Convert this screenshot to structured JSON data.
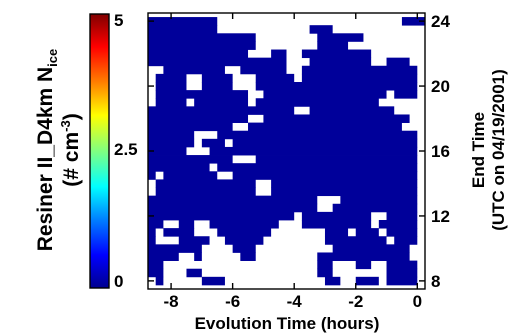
{
  "chart_data": {
    "type": "heatmap",
    "xlabel": "Evolution Time (hours)",
    "ylabel_right": [
      "End Time",
      "(UTC on 04/19/2001)"
    ],
    "colorbar_label": [
      "Resiner II_D4km N",
      "ice",
      "(# cm",
      "-3",
      ")"
    ],
    "xlim": [
      -8.75,
      0.25
    ],
    "ylim": [
      7.5,
      24.5
    ],
    "x_ticks": [
      -8,
      -6,
      -4,
      -2,
      0
    ],
    "y_ticks": [
      8,
      12,
      16,
      20,
      24
    ],
    "colorbar_ticks": [
      "0",
      "2.5",
      "5"
    ],
    "colorbar_range": [
      0,
      5
    ],
    "x_step": 0.25,
    "y_step": 0.5,
    "fill_color": "#00009a",
    "colormap": [
      "#00008f",
      "#0000ff",
      "#0080ff",
      "#00ffff",
      "#80ff80",
      "#ffff00",
      "#ff8000",
      "#ff0000",
      "#800000"
    ],
    "value_note": "all filled cells near 0",
    "rows": [
      {
        "y": 8.0,
        "x": [
          [
            -8.5,
            -8.25
          ],
          [
            -7.0,
            -6.25
          ],
          [
            -3.0,
            -2.5
          ],
          [
            -2.0,
            -1.25
          ],
          [
            -1.0,
            0
          ]
        ]
      },
      {
        "y": 8.5,
        "x": [
          [
            -8.75,
            -8.25
          ],
          [
            -7.5,
            -7.0
          ],
          [
            -3.25,
            -2.75
          ],
          [
            -1.0,
            0
          ]
        ]
      },
      {
        "y": 9.0,
        "x": [
          [
            -8.75,
            -8.25
          ],
          [
            -3.25,
            -2.75
          ],
          [
            -2.0,
            -1.5
          ],
          [
            -1.0,
            0
          ]
        ]
      },
      {
        "y": 9.5,
        "x": [
          [
            -8.75,
            -7.75
          ],
          [
            -7.25,
            -7.0
          ],
          [
            -5.75,
            -5.25
          ],
          [
            -3.25,
            -0.25
          ]
        ]
      },
      {
        "y": 10.0,
        "x": [
          [
            -8.75,
            -7.0
          ],
          [
            -6.0,
            -5.25
          ],
          [
            -2.75,
            -0.25
          ]
        ]
      },
      {
        "y": 10.5,
        "x": [
          [
            -8.75,
            -8.5
          ],
          [
            -7.75,
            -6.75
          ],
          [
            -6.25,
            -5.0
          ],
          [
            -3.0,
            -1.0
          ],
          [
            -0.75,
            0
          ]
        ]
      },
      {
        "y": 11.0,
        "x": [
          [
            -8.75,
            -8.5
          ],
          [
            -8.25,
            -7.25
          ],
          [
            -6.5,
            -4.75
          ],
          [
            -3.0,
            -2.25
          ],
          [
            -2.0,
            -1.25
          ],
          [
            -1.0,
            0
          ]
        ]
      },
      {
        "y": 11.5,
        "x": [
          [
            -8.75,
            -8.25
          ],
          [
            -7.75,
            -7.25
          ],
          [
            -6.75,
            -4.5
          ],
          [
            -3.75,
            -1.5
          ],
          [
            -1.25,
            0
          ]
        ]
      },
      {
        "y": 12.0,
        "x": [
          [
            -8.75,
            -4.0
          ],
          [
            -3.75,
            -1.5
          ],
          [
            -1.0,
            0
          ]
        ]
      },
      {
        "y": 12.5,
        "x": [
          [
            -8.75,
            -3.25
          ],
          [
            -2.75,
            0
          ]
        ]
      },
      {
        "y": 13.0,
        "x": [
          [
            -8.75,
            -3.25
          ],
          [
            -2.5,
            0
          ]
        ]
      },
      {
        "y": 13.5,
        "x": [
          [
            -8.5,
            -5.25
          ],
          [
            -4.75,
            0
          ]
        ]
      },
      {
        "y": 14.0,
        "x": [
          [
            -8.5,
            -5.25
          ],
          [
            -4.75,
            0
          ]
        ]
      },
      {
        "y": 14.5,
        "x": [
          [
            -8.75,
            -8.5
          ],
          [
            -8.25,
            -6.5
          ],
          [
            -6.0,
            0
          ]
        ]
      },
      {
        "y": 15.0,
        "x": [
          [
            -8.75,
            -6.75
          ],
          [
            -6.5,
            0
          ]
        ]
      },
      {
        "y": 15.5,
        "x": [
          [
            -8.75,
            -6.0
          ],
          [
            -5.25,
            0
          ]
        ]
      },
      {
        "y": 16.0,
        "x": [
          [
            -8.75,
            -7.5
          ],
          [
            -6.75,
            0
          ]
        ]
      },
      {
        "y": 16.5,
        "x": [
          [
            -8.75,
            -7.25
          ],
          [
            -7.0,
            -6.25
          ],
          [
            -6.0,
            0
          ]
        ]
      },
      {
        "y": 17.0,
        "x": [
          [
            -8.75,
            -7.25
          ],
          [
            -6.5,
            0
          ]
        ]
      },
      {
        "y": 17.5,
        "x": [
          [
            -8.75,
            -6.0
          ],
          [
            -5.5,
            -0.5
          ]
        ]
      },
      {
        "y": 18.0,
        "x": [
          [
            -8.75,
            -5.5
          ],
          [
            -5.0,
            -0.25
          ]
        ]
      },
      {
        "y": 18.5,
        "x": [
          [
            -8.75,
            -4.0
          ],
          [
            -3.5,
            -0.75
          ]
        ]
      },
      {
        "y": 19.0,
        "x": [
          [
            -8.5,
            -7.5
          ],
          [
            -7.25,
            -5.5
          ],
          [
            -5.25,
            -1.25
          ]
        ]
      },
      {
        "y": 19.5,
        "x": [
          [
            -8.5,
            -5.5
          ],
          [
            -5.0,
            -1.0
          ],
          [
            -0.75,
            0
          ]
        ]
      },
      {
        "y": 20.0,
        "x": [
          [
            -8.5,
            -7.5
          ],
          [
            -7.0,
            -6.0
          ],
          [
            -5.25,
            0
          ]
        ]
      },
      {
        "y": 20.5,
        "x": [
          [
            -8.5,
            -7.5
          ],
          [
            -7.0,
            -6.0
          ],
          [
            -5.25,
            -4.0
          ],
          [
            -3.75,
            0
          ]
        ]
      },
      {
        "y": 21.0,
        "x": [
          [
            -8.25,
            -6.25
          ],
          [
            -5.75,
            -4.25
          ],
          [
            -3.75,
            0
          ]
        ]
      },
      {
        "y": 21.5,
        "x": [
          [
            -8.75,
            -4.25
          ],
          [
            -3.5,
            -1.5
          ],
          [
            -1.0,
            -0.25
          ]
        ]
      },
      {
        "y": 22.0,
        "x": [
          [
            -8.75,
            -5.5
          ],
          [
            -4.75,
            -4.25
          ],
          [
            -3.75,
            -1.5
          ]
        ]
      },
      {
        "y": 22.5,
        "x": [
          [
            -8.75,
            -5.25
          ],
          [
            -3.25,
            -2.25
          ]
        ]
      },
      {
        "y": 23.0,
        "x": [
          [
            -8.75,
            -5.25
          ],
          [
            -3.25,
            -1.75
          ]
        ]
      },
      {
        "y": 23.5,
        "x": [
          [
            -8.75,
            -6.5
          ],
          [
            -3.5,
            -2.75
          ]
        ]
      },
      {
        "y": 24.0,
        "x": [
          [
            -8.75,
            -6.5
          ],
          [
            -0.5,
            0.25
          ]
        ]
      }
    ]
  }
}
